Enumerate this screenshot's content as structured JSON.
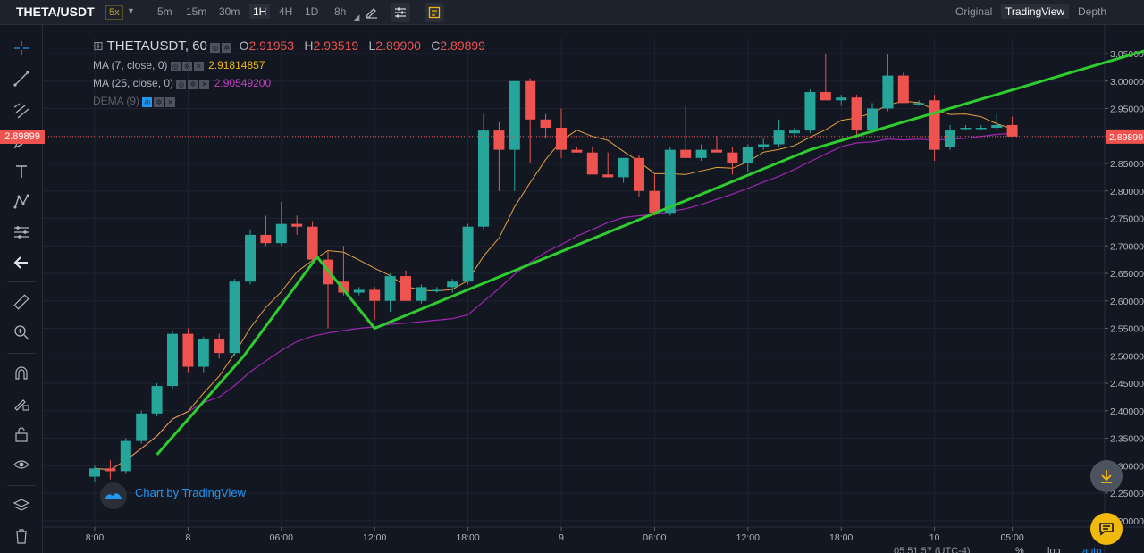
{
  "toolbar": {
    "symbol": "THETA/USDT",
    "leverage": "5x",
    "timeframes": [
      "5m",
      "15m",
      "30m",
      "1H",
      "4H",
      "1D",
      "8h"
    ],
    "active_timeframe": "1H",
    "views": [
      "Original",
      "TradingView",
      "Depth"
    ],
    "active_view": "TradingView"
  },
  "legend": {
    "title": "THETAUSDT, 60",
    "o_label": "O",
    "o_value": "2.91953",
    "h_label": "H",
    "h_value": "2.93519",
    "l_label": "L",
    "l_value": "2.89900",
    "c_label": "C",
    "c_value": "2.89899",
    "ma7_label": "MA (7, close, 0)",
    "ma7_value": "2.91814857",
    "ma25_label": "MA (25, close, 0)",
    "ma25_value": "2.90549200",
    "dema_label": "DEMA (9)"
  },
  "colors": {
    "up": "#26a69a",
    "down": "#ef5350",
    "ma7": "#e6a23c",
    "ma25": "#9c27b0",
    "trend": "#2ecc2e",
    "price_line": "#ef5350",
    "accent": "#f0b90b"
  },
  "attribution": "Chart by TradingView",
  "bottom": {
    "time": "05:51:57 (UTC-4)",
    "pct": "%",
    "log": "log",
    "auto": "auto"
  },
  "chart_data": {
    "type": "candlestick",
    "y_ticks": [
      "3.05000",
      "3.00000",
      "2.95000",
      "2.90000",
      "2.85000",
      "2.80000",
      "2.75000",
      "2.70000",
      "2.65000",
      "2.60000",
      "2.55000",
      "2.50000",
      "2.45000",
      "2.40000",
      "2.35000",
      "2.30000",
      "2.25000",
      "2.20000"
    ],
    "ylim": [
      2.195,
      3.07
    ],
    "x_labels": [
      {
        "i": 0,
        "label": "8:00"
      },
      {
        "i": 6,
        "label": "8"
      },
      {
        "i": 12,
        "label": "06:00"
      },
      {
        "i": 18,
        "label": "12:00"
      },
      {
        "i": 24,
        "label": "18:00"
      },
      {
        "i": 30,
        "label": "9"
      },
      {
        "i": 36,
        "label": "06:00"
      },
      {
        "i": 42,
        "label": "12:00"
      },
      {
        "i": 48,
        "label": "18:00"
      },
      {
        "i": 54,
        "label": "10"
      },
      {
        "i": 59,
        "label": "05:00"
      }
    ],
    "current_price": "2.89899",
    "candles": [
      [
        2.28,
        2.3,
        2.27,
        2.295
      ],
      [
        2.295,
        2.31,
        2.275,
        2.29
      ],
      [
        2.29,
        2.35,
        2.285,
        2.345
      ],
      [
        2.345,
        2.4,
        2.34,
        2.395
      ],
      [
        2.395,
        2.45,
        2.39,
        2.445
      ],
      [
        2.445,
        2.545,
        2.44,
        2.54
      ],
      [
        2.54,
        2.55,
        2.47,
        2.48
      ],
      [
        2.48,
        2.535,
        2.47,
        2.53
      ],
      [
        2.53,
        2.54,
        2.495,
        2.505
      ],
      [
        2.505,
        2.64,
        2.5,
        2.635
      ],
      [
        2.635,
        2.73,
        2.63,
        2.72
      ],
      [
        2.72,
        2.755,
        2.7,
        2.705
      ],
      [
        2.705,
        2.78,
        2.7,
        2.74
      ],
      [
        2.74,
        2.755,
        2.72,
        2.735
      ],
      [
        2.735,
        2.745,
        2.67,
        2.675
      ],
      [
        2.675,
        2.69,
        2.55,
        2.63
      ],
      [
        2.635,
        2.7,
        2.61,
        2.615
      ],
      [
        2.615,
        2.625,
        2.61,
        2.62
      ],
      [
        2.62,
        2.625,
        2.565,
        2.6
      ],
      [
        2.6,
        2.65,
        2.58,
        2.645
      ],
      [
        2.645,
        2.655,
        2.6,
        2.6
      ],
      [
        2.6,
        2.63,
        2.595,
        2.625
      ],
      [
        2.62,
        2.625,
        2.615,
        2.62
      ],
      [
        2.625,
        2.64,
        2.615,
        2.635
      ],
      [
        2.635,
        2.74,
        2.63,
        2.735
      ],
      [
        2.735,
        2.94,
        2.73,
        2.91
      ],
      [
        2.91,
        2.925,
        2.8,
        2.875
      ],
      [
        2.875,
        3.0,
        2.8,
        3.0
      ],
      [
        3.0,
        3.005,
        2.85,
        2.93
      ],
      [
        2.93,
        2.94,
        2.895,
        2.915
      ],
      [
        2.915,
        2.95,
        2.86,
        2.875
      ],
      [
        2.875,
        2.88,
        2.87,
        2.87
      ],
      [
        2.87,
        2.88,
        2.83,
        2.83
      ],
      [
        2.83,
        2.87,
        2.825,
        2.825
      ],
      [
        2.825,
        2.86,
        2.815,
        2.86
      ],
      [
        2.86,
        2.865,
        2.79,
        2.8
      ],
      [
        2.8,
        2.83,
        2.755,
        2.76
      ],
      [
        2.76,
        2.88,
        2.755,
        2.875
      ],
      [
        2.875,
        2.955,
        2.86,
        2.86
      ],
      [
        2.86,
        2.885,
        2.855,
        2.875
      ],
      [
        2.875,
        2.9,
        2.87,
        2.87
      ],
      [
        2.87,
        2.88,
        2.83,
        2.85
      ],
      [
        2.85,
        2.885,
        2.835,
        2.88
      ],
      [
        2.88,
        2.895,
        2.875,
        2.885
      ],
      [
        2.885,
        2.93,
        2.88,
        2.91
      ],
      [
        2.905,
        2.915,
        2.9,
        2.91
      ],
      [
        2.91,
        2.985,
        2.905,
        2.98
      ],
      [
        2.98,
        3.05,
        2.965,
        2.965
      ],
      [
        2.965,
        2.975,
        2.955,
        2.97
      ],
      [
        2.97,
        2.975,
        2.9,
        2.91
      ],
      [
        2.91,
        2.96,
        2.905,
        2.95
      ],
      [
        2.95,
        3.05,
        2.945,
        3.01
      ],
      [
        3.01,
        3.015,
        2.96,
        2.96
      ],
      [
        2.96,
        2.965,
        2.955,
        2.96
      ],
      [
        2.965,
        2.975,
        2.855,
        2.875
      ],
      [
        2.88,
        2.92,
        2.875,
        2.91
      ],
      [
        2.915,
        2.92,
        2.91,
        2.915
      ],
      [
        2.915,
        2.92,
        2.91,
        2.915
      ],
      [
        2.915,
        2.94,
        2.91,
        2.92
      ],
      [
        2.92,
        2.935,
        2.899,
        2.899
      ]
    ],
    "trendlines": [
      {
        "points": [
          [
            4.0,
            2.32
          ],
          [
            9.6,
            2.5
          ],
          [
            14.3,
            2.68
          ]
        ]
      },
      {
        "points": [
          [
            14.3,
            2.68
          ],
          [
            18.0,
            2.55
          ],
          [
            24.4,
            2.625
          ]
        ]
      },
      {
        "points": [
          [
            24.4,
            2.625
          ],
          [
            46.0,
            2.875
          ],
          [
            67.5,
            3.055
          ]
        ]
      }
    ]
  }
}
